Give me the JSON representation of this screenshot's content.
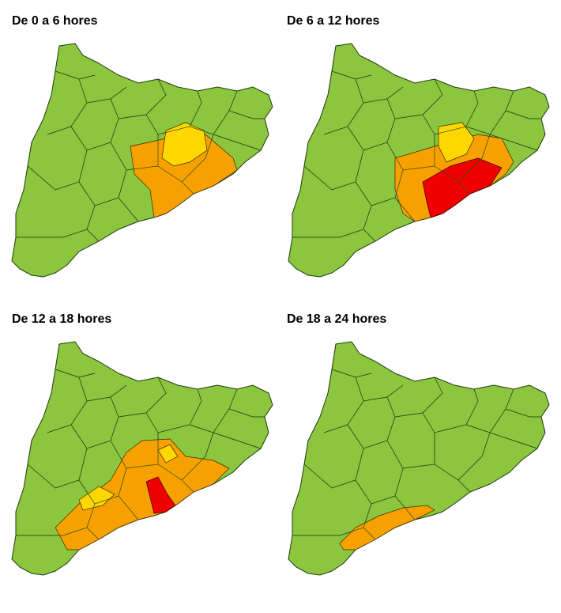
{
  "panels": [
    {
      "title": "De 0 a 6 hores"
    },
    {
      "title": "De 6 a 12 hores"
    },
    {
      "title": "De 12 a 18 hores"
    },
    {
      "title": "De 18 a 24 hores"
    }
  ]
}
